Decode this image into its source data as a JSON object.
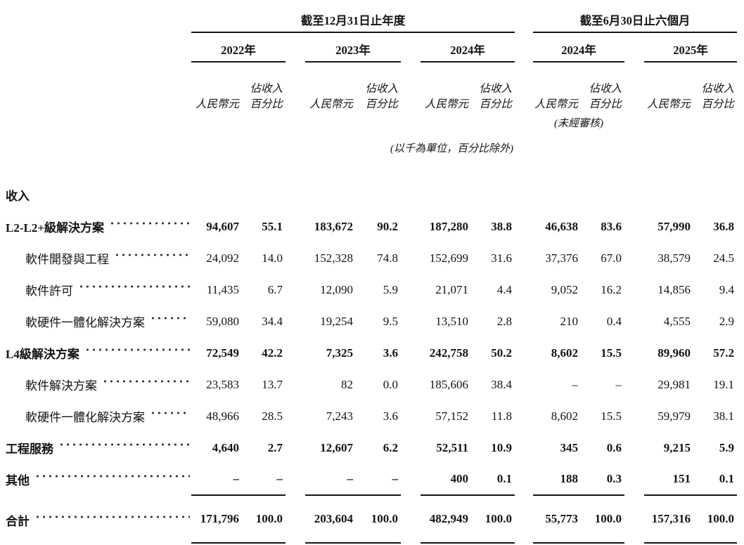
{
  "table": {
    "groups": [
      {
        "label": "截至12月31日止年度",
        "years": [
          "2022年",
          "2023年",
          "2024年"
        ]
      },
      {
        "label": "截至6月30日止六個月",
        "years": [
          "2024年",
          "2025年"
        ]
      }
    ],
    "col_headers": {
      "value": "人民幣元",
      "pct_line1": "佔收入",
      "pct_line2": "百分比"
    },
    "unaudited_note": "(未經審核)",
    "units_note": "(以千為單位，百分比除外)",
    "section_header": "收入",
    "rows": [
      {
        "label": "L2-L2+級解決方案",
        "bold": true,
        "indent": false,
        "values": [
          "94,607",
          "55.1",
          "183,672",
          "90.2",
          "187,280",
          "38.8",
          "46,638",
          "83.6",
          "57,990",
          "36.8"
        ]
      },
      {
        "label": "軟件開發與工程",
        "bold": false,
        "indent": true,
        "values": [
          "24,092",
          "14.0",
          "152,328",
          "74.8",
          "152,699",
          "31.6",
          "37,376",
          "67.0",
          "38,579",
          "24.5"
        ]
      },
      {
        "label": "軟件許可",
        "bold": false,
        "indent": true,
        "values": [
          "11,435",
          "6.7",
          "12,090",
          "5.9",
          "21,071",
          "4.4",
          "9,052",
          "16.2",
          "14,856",
          "9.4"
        ]
      },
      {
        "label": "軟硬件一體化解決方案",
        "bold": false,
        "indent": true,
        "values": [
          "59,080",
          "34.4",
          "19,254",
          "9.5",
          "13,510",
          "2.8",
          "210",
          "0.4",
          "4,555",
          "2.9"
        ]
      },
      {
        "label": "L4級解決方案",
        "bold": true,
        "indent": false,
        "values": [
          "72,549",
          "42.2",
          "7,325",
          "3.6",
          "242,758",
          "50.2",
          "8,602",
          "15.5",
          "89,960",
          "57.2"
        ]
      },
      {
        "label": "軟件解決方案",
        "bold": false,
        "indent": true,
        "values": [
          "23,583",
          "13.7",
          "82",
          "0.0",
          "185,606",
          "38.4",
          "–",
          "–",
          "29,981",
          "19.1"
        ]
      },
      {
        "label": "軟硬件一體化解決方案",
        "bold": false,
        "indent": true,
        "values": [
          "48,966",
          "28.5",
          "7,243",
          "3.6",
          "57,152",
          "11.8",
          "8,602",
          "15.5",
          "59,979",
          "38.1"
        ]
      },
      {
        "label": "工程服務",
        "bold": true,
        "indent": false,
        "values": [
          "4,640",
          "2.7",
          "12,607",
          "6.2",
          "52,511",
          "10.9",
          "345",
          "0.6",
          "9,215",
          "5.9"
        ]
      },
      {
        "label": "其他",
        "bold": true,
        "indent": false,
        "values": [
          "–",
          "–",
          "–",
          "–",
          "400",
          "0.1",
          "188",
          "0.3",
          "151",
          "0.1"
        ]
      }
    ],
    "total_row": {
      "label": "合計",
      "values": [
        "171,796",
        "100.0",
        "203,604",
        "100.0",
        "482,949",
        "100.0",
        "55,773",
        "100.0",
        "157,316",
        "100.0"
      ]
    }
  }
}
